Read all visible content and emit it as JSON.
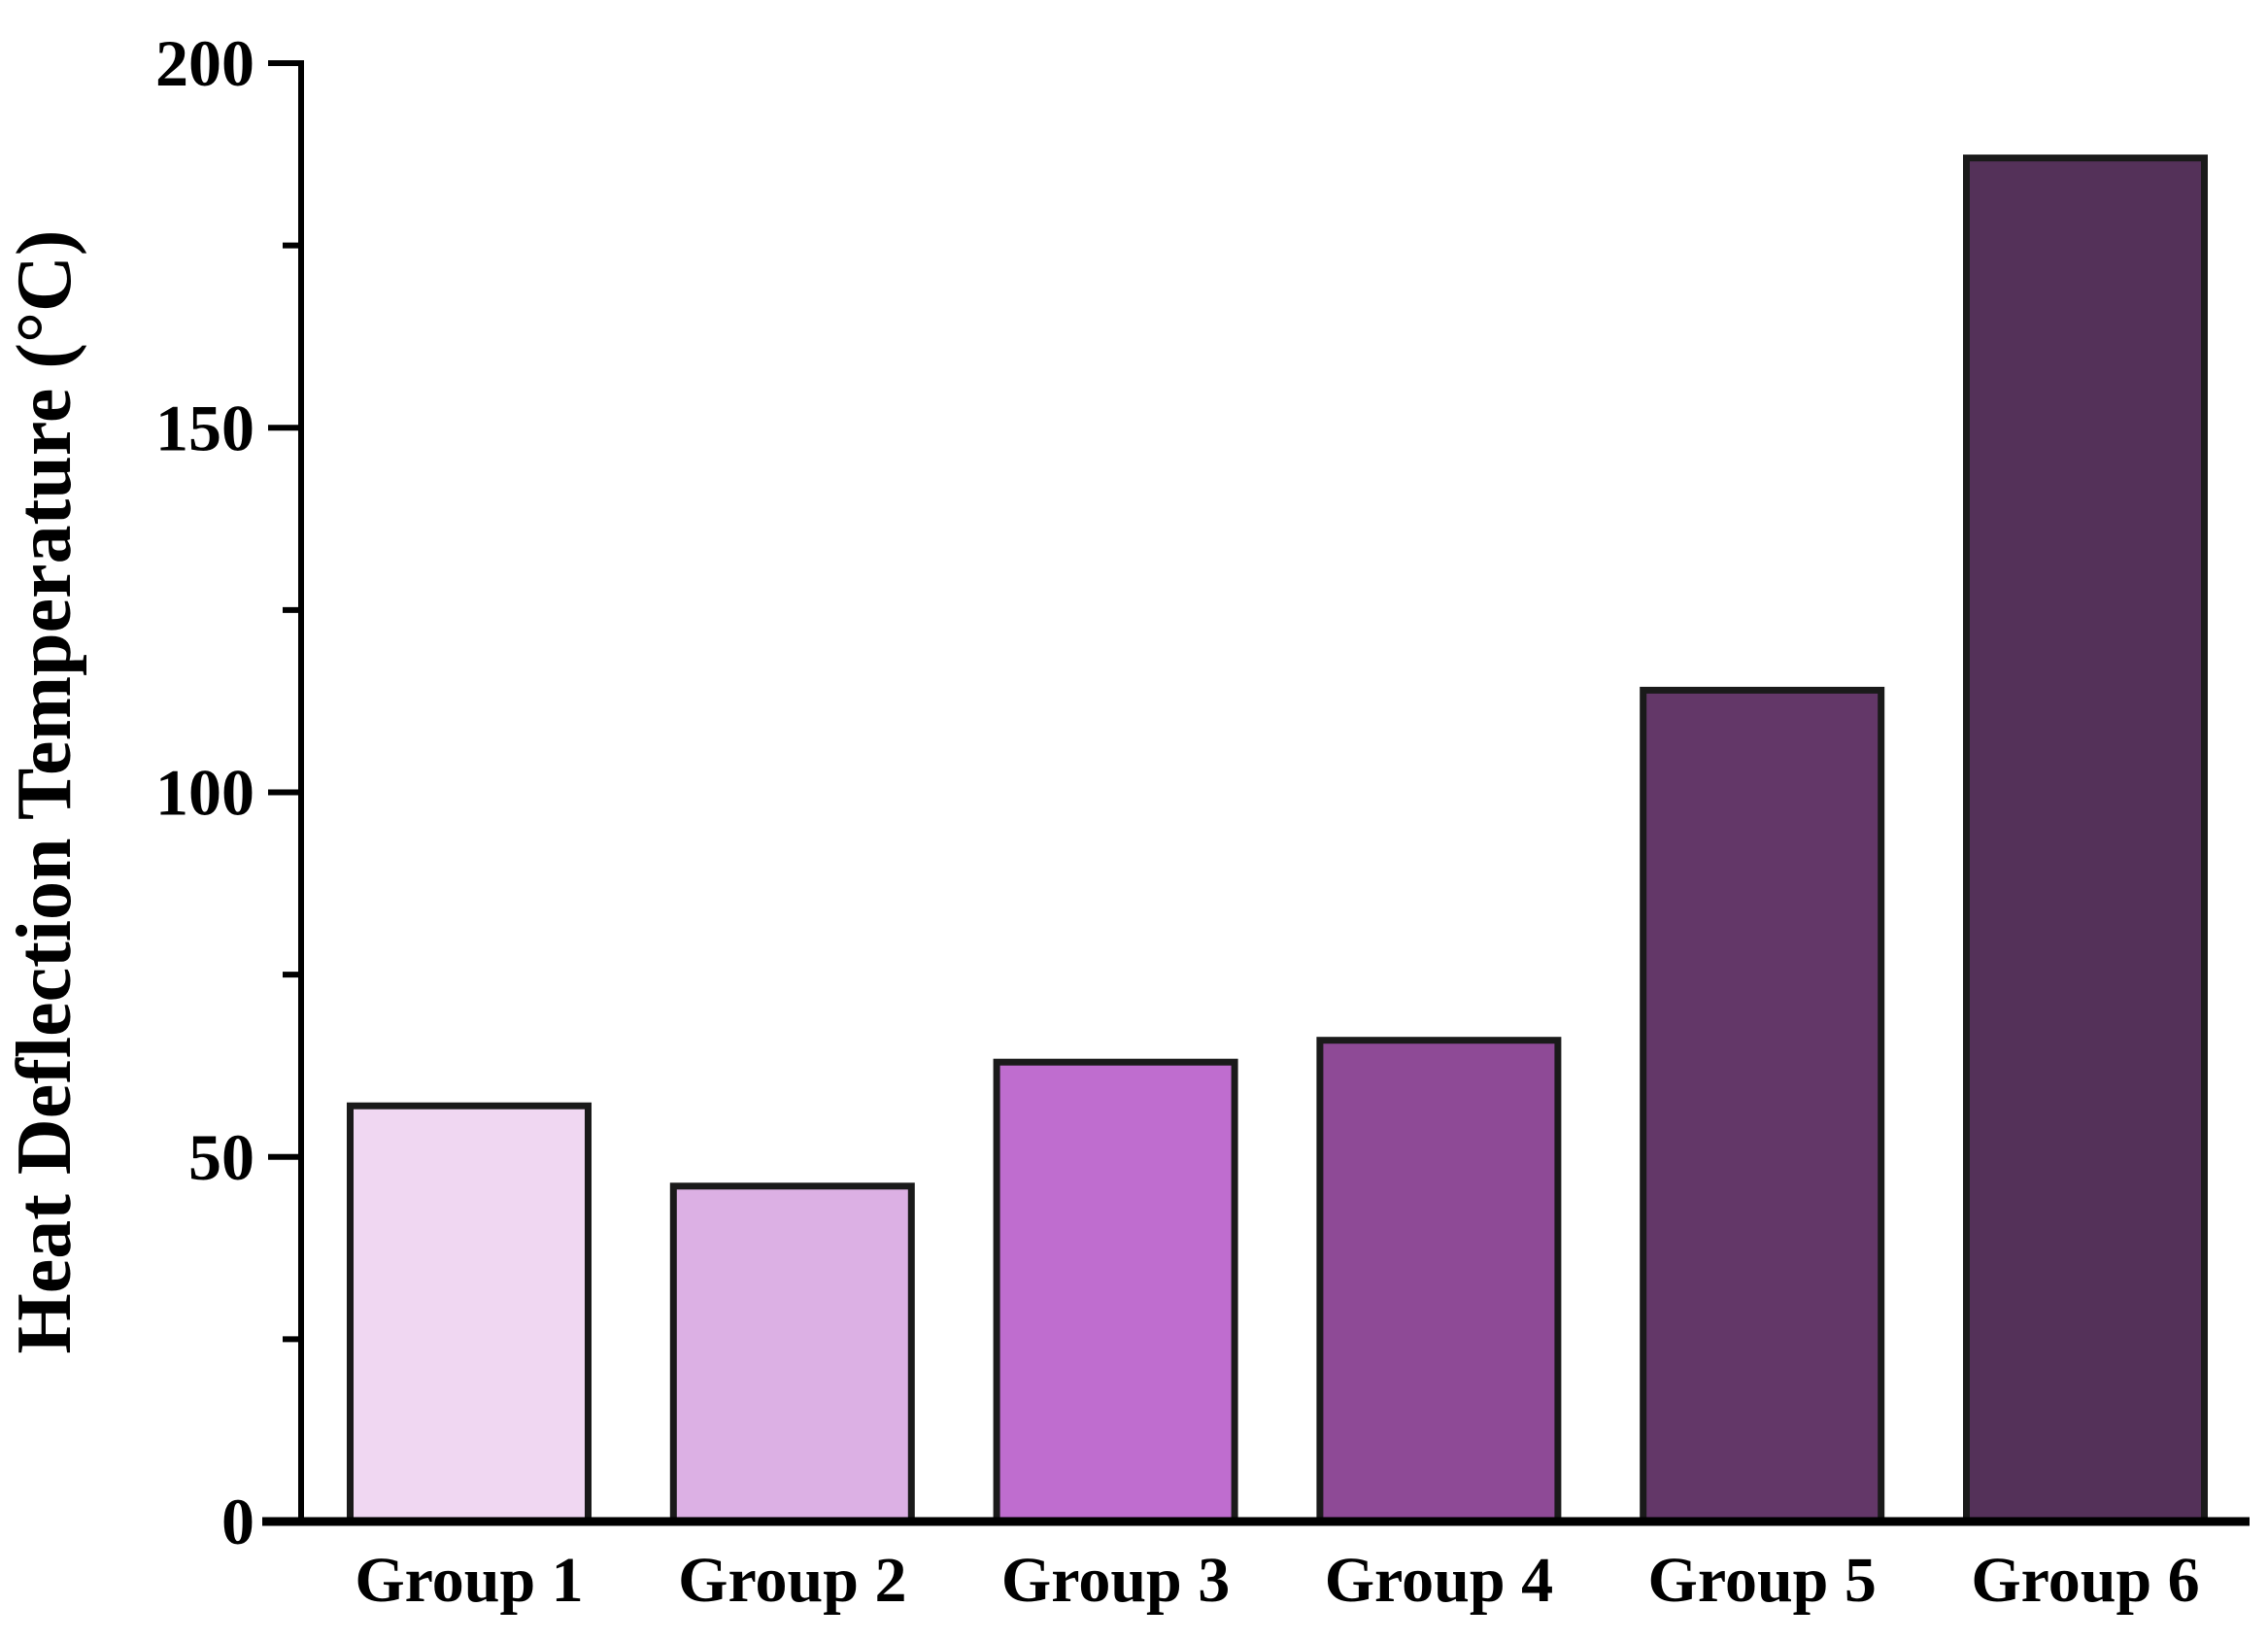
{
  "chart_data": {
    "type": "bar",
    "title": "",
    "ylabel": "Heat Deflection Temperature (°C)",
    "xlabel": "",
    "categories": [
      "Group 1",
      "Group 2",
      "Group 3",
      "Group 4",
      "Group 5",
      "Group 6"
    ],
    "values": [
      57,
      46,
      63,
      66,
      114,
      187
    ],
    "bar_colors": [
      "#f0d7f2",
      "#dcb0e4",
      "#bf6dcf",
      "#8e4a96",
      "#633768",
      "#543159"
    ],
    "bar_border_color": "#1a1a1a",
    "axis_color": "#000000",
    "background_color": "#ffffff",
    "ylim": [
      0,
      200
    ],
    "ytick_major_step": 50,
    "ytick_minor_step": 25,
    "ytick_labels": [
      "0",
      "50",
      "100",
      "150",
      "200"
    ],
    "grid": false,
    "legend": false
  }
}
